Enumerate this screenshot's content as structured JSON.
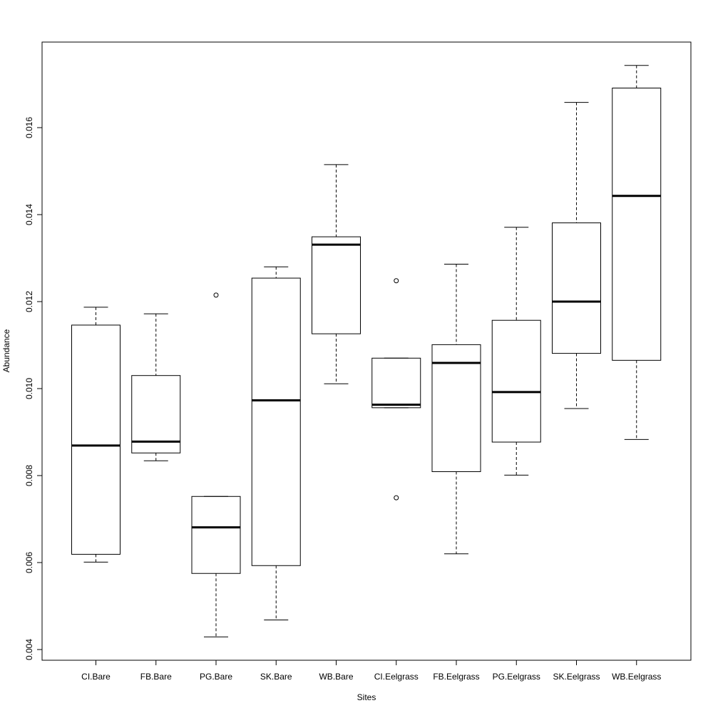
{
  "chart_data": {
    "type": "boxplot",
    "title": "",
    "xlabel": "Sites",
    "ylabel": "Abundance",
    "ylim": [
      0.0038,
      0.0178
    ],
    "y_ticks": [
      0.004,
      0.006,
      0.008,
      0.01,
      0.012,
      0.014,
      0.016
    ],
    "y_tick_labels": [
      "0.004",
      "0.006",
      "0.008",
      "0.010",
      "0.012",
      "0.014",
      "0.016"
    ],
    "categories": [
      "CI.Bare",
      "FB.Bare",
      "PG.Bare",
      "SK.Bare",
      "WB.Bare",
      "CI.Eelgrass",
      "FB.Eelgrass",
      "PG.Eelgrass",
      "SK.Eelgrass",
      "WB.Eelgrass"
    ],
    "boxes": [
      {
        "whisker_low": 0.00601,
        "q1": 0.00619,
        "median": 0.00869,
        "q3": 0.01146,
        "whisker_high": 0.01187,
        "outliers": []
      },
      {
        "whisker_low": 0.00834,
        "q1": 0.00852,
        "median": 0.00878,
        "q3": 0.0103,
        "whisker_high": 0.01172,
        "outliers": []
      },
      {
        "whisker_low": 0.00429,
        "q1": 0.00575,
        "median": 0.00681,
        "q3": 0.00752,
        "whisker_high": 0.00752,
        "outliers": [
          0.01215
        ]
      },
      {
        "whisker_low": 0.00468,
        "q1": 0.00593,
        "median": 0.00973,
        "q3": 0.01254,
        "whisker_high": 0.0128,
        "outliers": []
      },
      {
        "whisker_low": 0.01011,
        "q1": 0.01126,
        "median": 0.01331,
        "q3": 0.01349,
        "whisker_high": 0.01515,
        "outliers": []
      },
      {
        "whisker_low": 0.00956,
        "q1": 0.00956,
        "median": 0.00963,
        "q3": 0.0107,
        "whisker_high": 0.0107,
        "outliers": [
          0.01248,
          0.00749
        ]
      },
      {
        "whisker_low": 0.0062,
        "q1": 0.00809,
        "median": 0.01059,
        "q3": 0.01101,
        "whisker_high": 0.01286,
        "outliers": []
      },
      {
        "whisker_low": 0.00801,
        "q1": 0.00877,
        "median": 0.00992,
        "q3": 0.01157,
        "whisker_high": 0.01371,
        "outliers": []
      },
      {
        "whisker_low": 0.00954,
        "q1": 0.01081,
        "median": 0.012,
        "q3": 0.01381,
        "whisker_high": 0.01658,
        "outliers": []
      },
      {
        "whisker_low": 0.00883,
        "q1": 0.01065,
        "median": 0.01443,
        "q3": 0.01691,
        "whisker_high": 0.01743,
        "outliers": []
      }
    ],
    "grid": false,
    "legend": "none"
  }
}
